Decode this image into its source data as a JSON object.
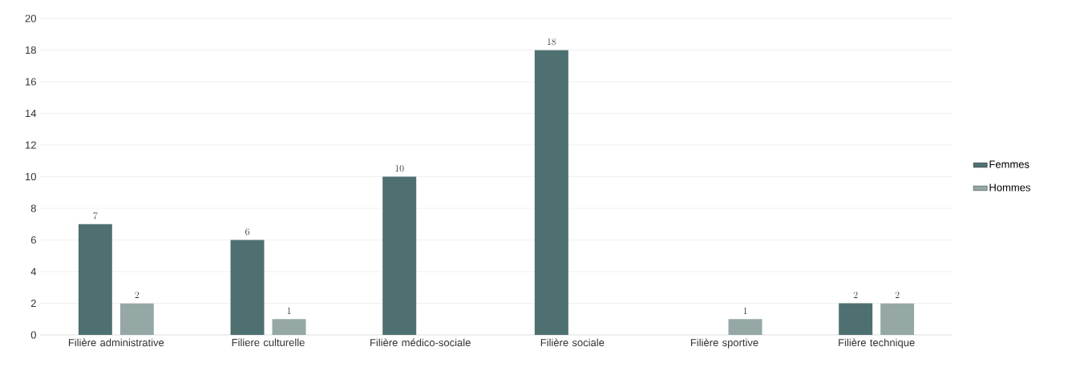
{
  "chart_data": {
    "type": "bar",
    "categories": [
      "Filière administrative",
      "Filiere culturelle",
      "Filière médico-sociale",
      "Filière sociale",
      "Filière sportive",
      "Filière technique"
    ],
    "series": [
      {
        "name": "Femmes",
        "color": "#4e7070",
        "values": [
          7,
          6,
          10,
          18,
          null,
          2
        ]
      },
      {
        "name": "Hommes",
        "color": "#95a8a6",
        "values": [
          2,
          1,
          null,
          null,
          1,
          2
        ]
      }
    ],
    "ylim": [
      0,
      20
    ],
    "yticks": [
      0,
      2,
      4,
      6,
      8,
      10,
      12,
      14,
      16,
      18,
      20
    ],
    "grid": "y",
    "legend": "right",
    "data_labels": true
  }
}
